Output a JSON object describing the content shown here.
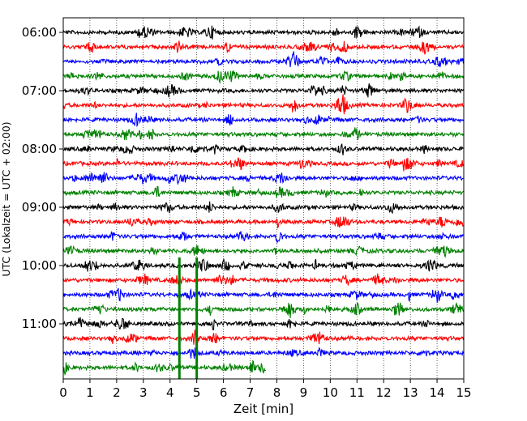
{
  "chart_data": {
    "type": "line",
    "title": "",
    "xlabel": "Zeit  [min]",
    "ylabel": "UTC (Lokalzeit = UTC + 02:00)",
    "xlim": [
      0,
      15
    ],
    "x_ticks": [
      "0",
      "1",
      "2",
      "3",
      "4",
      "5",
      "6",
      "7",
      "8",
      "9",
      "10",
      "11",
      "12",
      "13",
      "14",
      "15"
    ],
    "y_ticks": [
      "06:00",
      "07:00",
      "08:00",
      "09:00",
      "10:00",
      "11:00"
    ],
    "grid": "vertical dotted at each minute",
    "legend": "none",
    "trace_interval_min": 15,
    "start_time": "06:00",
    "trace_count": 24,
    "last_trace_end_min": 7.6,
    "color_cycle": [
      "#000000",
      "#ff0000",
      "#0000ff",
      "#008000"
    ],
    "events": [
      {
        "trace": "11:00",
        "x": 4.35,
        "color": "#008000"
      },
      {
        "trace": "11:00",
        "x": 5.0,
        "color": "#008000"
      }
    ]
  }
}
